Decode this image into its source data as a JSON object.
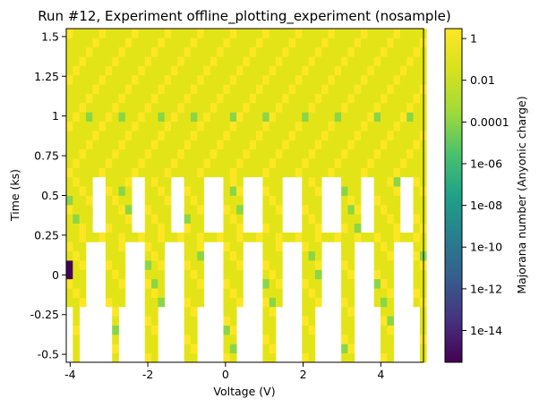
{
  "chart_data": {
    "type": "heatmap",
    "title": "Run #12, Experiment offline_plotting_experiment (nosample)",
    "xlabel": "Voltage (V)",
    "ylabel": "Time (ks)",
    "xlim": [
      -4.1,
      5.1
    ],
    "ylim": [
      -0.55,
      1.55
    ],
    "x_ticks": [
      -4,
      -2,
      0,
      2,
      4
    ],
    "x_tick_labels": [
      "-4",
      "-2",
      "0",
      "2",
      "4"
    ],
    "y_ticks": [
      -0.5,
      -0.25,
      0,
      0.25,
      0.5,
      0.75,
      1,
      1.25,
      1.5
    ],
    "y_tick_labels": [
      "-0.5",
      "-0.25",
      "0",
      "0.25",
      "0.5",
      "0.75",
      "1",
      "1.25",
      "1.5"
    ],
    "colorbar": {
      "label": "Majorana number (Anyonic charge)",
      "scale": "log",
      "colormap": "viridis",
      "range": [
        3e-16,
        3
      ],
      "ticks": [
        1,
        0.01,
        0.0001,
        1e-06,
        1e-08,
        1e-10,
        1e-12,
        1e-14
      ],
      "tick_labels": [
        "1",
        "0.01",
        "0.0001",
        "1e-06",
        "1e-08",
        "1e-10",
        "1e-12",
        "1e-14"
      ]
    },
    "colors": {
      "dominant": "#e3e418",
      "bright": "#fde725",
      "mid_green": "#8bd646",
      "minimum": "#440154"
    },
    "grid": false,
    "bins": {
      "x_start": -4.1,
      "x_step": 0.1686,
      "x_count": 55,
      "y_start": -0.55,
      "y_step": 0.05833,
      "y_count": 36
    }
  }
}
